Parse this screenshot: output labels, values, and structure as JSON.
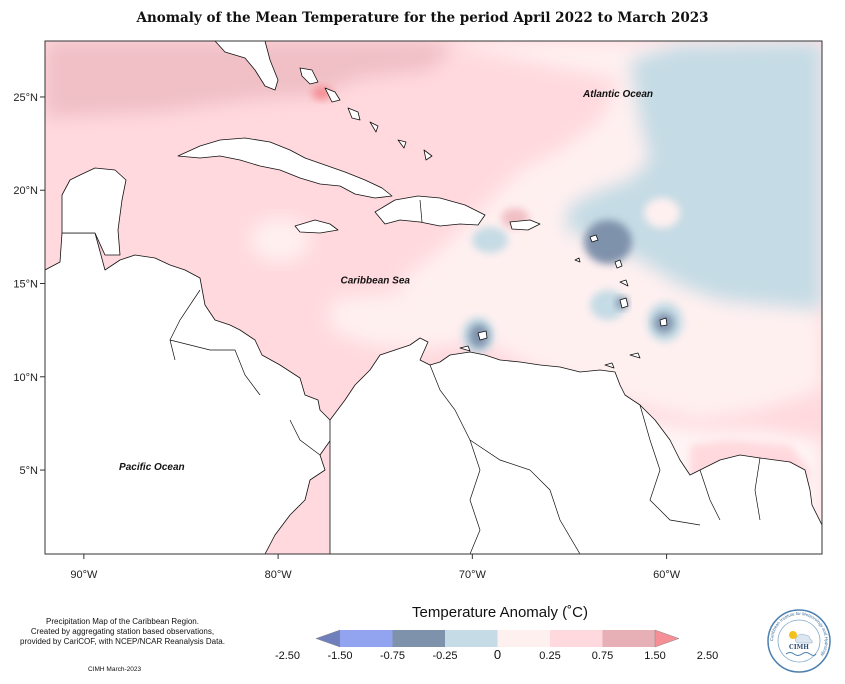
{
  "title": "Anomaly of the Mean Temperature for the period April 2022 to March 2023",
  "map": {
    "lon_range": [
      -92,
      -52
    ],
    "lat_range": [
      0.5,
      28
    ],
    "x_ticks": [
      {
        "value": -90,
        "label": "90°W"
      },
      {
        "value": -80,
        "label": "80°W"
      },
      {
        "value": -70,
        "label": "70°W"
      },
      {
        "value": -60,
        "label": "60°W"
      }
    ],
    "y_ticks": [
      {
        "value": 25,
        "label": "25°N"
      },
      {
        "value": 20,
        "label": "20°N"
      },
      {
        "value": 15,
        "label": "15°N"
      },
      {
        "value": 10,
        "label": "10°N"
      },
      {
        "value": 5,
        "label": "5°N"
      }
    ],
    "labels": [
      {
        "text": "Atlantic Ocean",
        "lon": -62.5,
        "lat": 25.0
      },
      {
        "text": "Caribbean Sea",
        "lon": -75.0,
        "lat": 15.0
      },
      {
        "text": "Pacific Ocean",
        "lon": -86.5,
        "lat": 5.0
      }
    ]
  },
  "legend": {
    "title": "Temperature Anomaly (˚C)",
    "labels": [
      "-2.50",
      "-1.50",
      "-0.75",
      "-0.25",
      "0",
      "0.25",
      "0.75",
      "1.50",
      "2.50"
    ],
    "colors": [
      "#6f7fbc",
      "#92a3ef",
      "#7f92ac",
      "#c5dbe5",
      "#fff0f0",
      "#ffd9de",
      "#e6b0b6",
      "#f58f95"
    ]
  },
  "credits": {
    "lines": [
      "Precipitation Map of the Caribbean Region.",
      "Created by aggregating station based observations,",
      "provided by CariCOF, with NCEP/NCAR Reanalysis Data."
    ],
    "date": "CIMH March-2023"
  },
  "logo": {
    "text": "CIMH",
    "ring_text": "Caribbean Institute for Meteorology and Hydrology"
  }
}
